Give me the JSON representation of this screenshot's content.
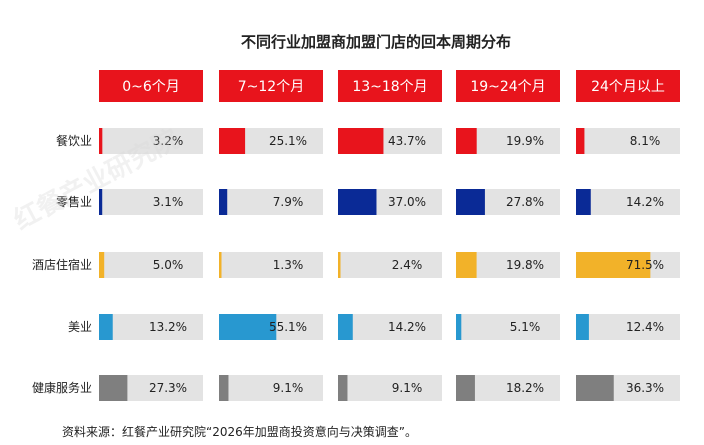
{
  "chart_data": {
    "type": "bar",
    "title": "不同行业加盟商加盟门店的回本周期分布",
    "columns": [
      "0~6个月",
      "7~12个月",
      "13~18个月",
      "19~24个月",
      "24个月以上"
    ],
    "categories": [
      "餐饮业",
      "零售业",
      "酒店住宿业",
      "美业",
      "健康服务业"
    ],
    "category_colors": [
      "#e8141c",
      "#0a2a96",
      "#f2b229",
      "#2898d0",
      "#7f7f7f"
    ],
    "track_color": "#e3e3e3",
    "header_color": "#e8141c",
    "unit": "%",
    "xlim": [
      0,
      100
    ],
    "series": [
      {
        "name": "0~6个月",
        "values": [
          3.2,
          3.1,
          5.0,
          13.2,
          27.3
        ],
        "labels": [
          "3.2%",
          "3.1%",
          "5.0%",
          "13.2%",
          "27.3%"
        ]
      },
      {
        "name": "7~12个月",
        "values": [
          25.1,
          7.9,
          1.3,
          55.1,
          9.1
        ],
        "labels": [
          "25.1%",
          "7.9%",
          "1.3%",
          "55.1%",
          "9.1%"
        ]
      },
      {
        "name": "13~18个月",
        "values": [
          43.7,
          37.0,
          2.4,
          14.2,
          9.1
        ],
        "labels": [
          "43.7%",
          "37.0%",
          "2.4%",
          "14.2%",
          "9.1%"
        ]
      },
      {
        "name": "19~24个月",
        "values": [
          19.9,
          27.8,
          19.8,
          5.1,
          18.2
        ],
        "labels": [
          "19.9%",
          "27.8%",
          "19.8%",
          "5.1%",
          "18.2%"
        ]
      },
      {
        "name": "24个月以上",
        "values": [
          8.1,
          14.2,
          71.5,
          12.4,
          36.3
        ],
        "labels": [
          "8.1%",
          "14.2%",
          "71.5%",
          "12.4%",
          "36.3%"
        ]
      }
    ]
  },
  "footer": {
    "source": "资料来源：红餐产业研究院“2026年加盟商投资意向与决策调查”。"
  },
  "watermark": {
    "text": "红餐产业研究院"
  }
}
